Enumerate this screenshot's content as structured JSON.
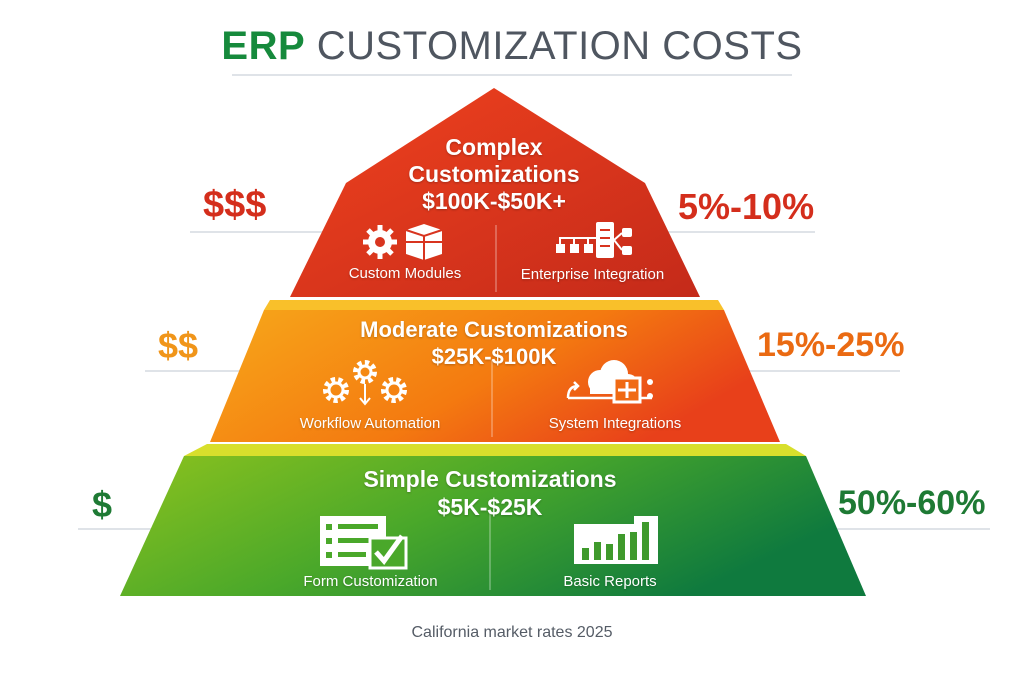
{
  "title": {
    "highlight": "ERP",
    "rest": "CUSTOMIZATION COSTS"
  },
  "colors": {
    "title_green": "#168a3c",
    "title_gray": "#4f5660",
    "complex": "#d8341f",
    "moderate": "#f28a12",
    "simple": "#4aa82a"
  },
  "tiers": [
    {
      "name_line1": "Complex",
      "name_line2": "Customizations",
      "range": "$100K-$50K+",
      "cost_symbol": "$$$",
      "share": "5%-10%",
      "items": [
        {
          "label": "Custom Modules",
          "icon": "gear-box-icon"
        },
        {
          "label": "Enterprise Integration",
          "icon": "network-server-icon"
        }
      ]
    },
    {
      "name": "Moderate Customizations",
      "range": "$25K-$100K",
      "cost_symbol": "$$",
      "share": "15%-25%",
      "items": [
        {
          "label": "Workflow Automation",
          "icon": "gears-icon"
        },
        {
          "label": "System Integrations",
          "icon": "cloud-integration-icon"
        }
      ]
    },
    {
      "name": "Simple Customizations",
      "range": "$5K-$25K",
      "cost_symbol": "$",
      "share": "50%-60%",
      "items": [
        {
          "label": "Form Customization",
          "icon": "form-checklist-icon"
        },
        {
          "label": "Basic Reports",
          "icon": "bar-chart-icon"
        }
      ]
    }
  ],
  "footer": "California market rates 2025"
}
